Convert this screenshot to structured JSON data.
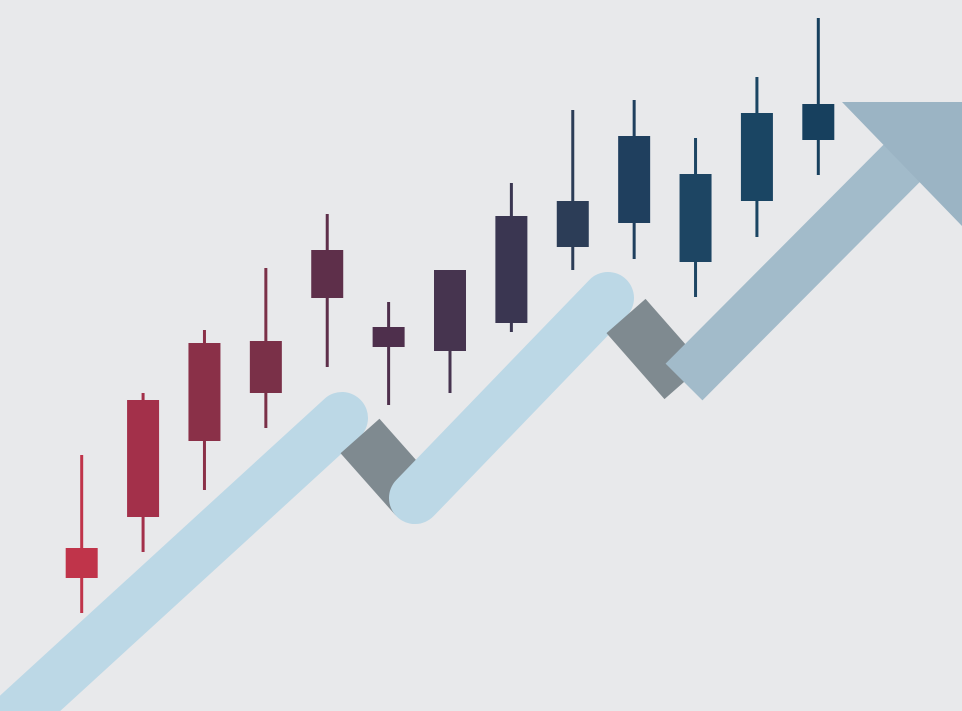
{
  "chart_data": {
    "type": "candlestick",
    "categories": [
      null,
      null,
      null,
      null,
      null,
      null,
      null,
      null,
      null,
      null,
      null,
      null,
      null
    ],
    "open": [
      133,
      194,
      270,
      318,
      413,
      364,
      360,
      388,
      464,
      488,
      449,
      510,
      571
    ],
    "high": [
      256,
      318,
      381,
      443,
      497,
      409,
      441,
      528,
      601,
      611,
      573,
      634,
      693
    ],
    "low": [
      98,
      159,
      221,
      283,
      344,
      306,
      318,
      379,
      441,
      452,
      414,
      474,
      536
    ],
    "close": [
      163,
      311,
      368,
      370,
      461,
      384,
      441,
      495,
      510,
      575,
      537,
      598,
      607
    ],
    "colors": [
      "#c0344a",
      "#a3304a",
      "#8a3048",
      "#7a3048",
      "#5e2f4a",
      "#4e2f4c",
      "#46344f",
      "#3a3651",
      "#2c3d57",
      "#1f3f5e",
      "#1d4563",
      "#1a4563",
      "#17405e"
    ],
    "ylim": [
      0,
      711
    ]
  }
}
